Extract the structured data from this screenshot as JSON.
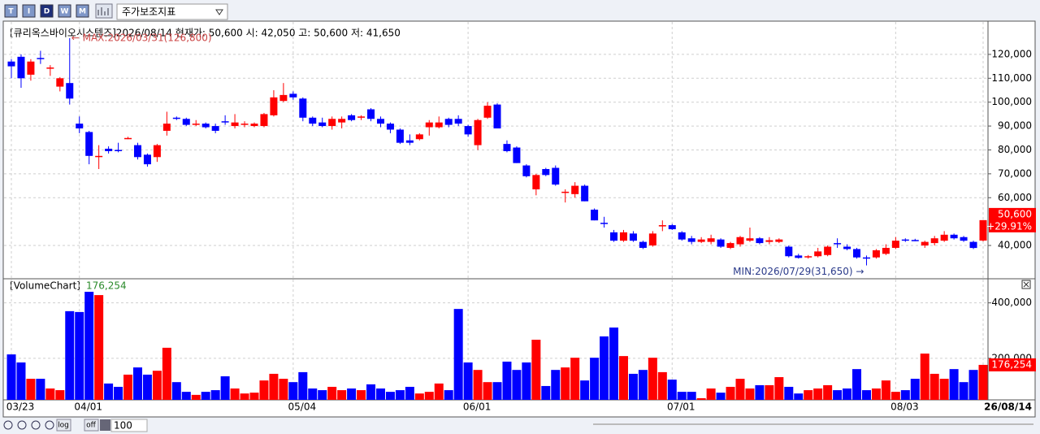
{
  "toolbar": {
    "buttons": [
      "T",
      "I",
      "D",
      "W",
      "M"
    ],
    "indicator_select": "주가보조지표"
  },
  "chart_data": [
    {
      "type": "candlestick",
      "header": "[큐리옥스바이오시스템즈]2026/08/14 현재가: 50,600 시: 42,050 고: 50,600 저: 41,650",
      "max_label": "← MAX:2026/03/31(126,800)",
      "min_label": "MIN:2026/07/29(31,650) →",
      "categories": [
        "03/23",
        null,
        null,
        null,
        null,
        null,
        null,
        "04/01",
        null,
        null,
        null,
        null,
        null,
        null,
        null,
        null,
        null,
        null,
        null,
        null,
        null,
        null,
        null,
        null,
        null,
        null,
        null,
        null,
        null,
        "05/04",
        null,
        null,
        null,
        null,
        null,
        null,
        null,
        null,
        null,
        null,
        null,
        null,
        null,
        null,
        null,
        null,
        null,
        "06/01",
        null,
        null,
        null,
        null,
        null,
        null,
        null,
        null,
        null,
        null,
        null,
        null,
        null,
        null,
        null,
        null,
        null,
        null,
        null,
        null,
        "07/01",
        null,
        null,
        null,
        null,
        null,
        null,
        null,
        null,
        null,
        null,
        null,
        null,
        null,
        null,
        null,
        null,
        null,
        null,
        null,
        null,
        null,
        null,
        "08/03",
        null,
        null,
        null,
        null,
        null,
        null,
        null,
        null,
        "26/08/14"
      ],
      "open": [
        117000,
        119000,
        111500,
        118500,
        114000,
        106500,
        108000,
        91000,
        87500,
        77000,
        80500,
        80000,
        84500,
        82000,
        78000,
        77000,
        88000,
        93500,
        93000,
        90500,
        91000,
        90000,
        92000,
        90000,
        90500,
        90000,
        90000,
        94500,
        100500,
        103500,
        101500,
        93500,
        91500,
        90000,
        91500,
        94500,
        93500,
        97000,
        93000,
        91000,
        88500,
        84000,
        84500,
        89500,
        89500,
        93000,
        93000,
        90000,
        82000,
        93500,
        99000,
        82500,
        81000,
        73500,
        63500,
        72000,
        72500,
        62000,
        61500,
        65000,
        55000,
        49500,
        45500,
        42000,
        45000,
        41500,
        40000,
        48000,
        48500,
        45500,
        43000,
        41500,
        41500,
        42500,
        39000,
        40500,
        42000,
        43000,
        41500,
        41500,
        39500,
        35800,
        35000,
        35500,
        36000,
        41000,
        39500,
        38500,
        35000,
        35000,
        36500,
        39000,
        42500,
        42300,
        40000,
        41000,
        42000,
        44500,
        43500,
        41500,
        42050
      ],
      "high": [
        118000,
        120000,
        118000,
        121500,
        115500,
        110500,
        126800,
        94000,
        88000,
        82000,
        81500,
        83000,
        85500,
        83000,
        78500,
        82500,
        96000,
        94000,
        93500,
        92500,
        91500,
        91000,
        94500,
        95000,
        92000,
        91500,
        95500,
        105000,
        108000,
        104500,
        102000,
        94000,
        93500,
        94000,
        94000,
        95000,
        94500,
        97500,
        94000,
        91500,
        89000,
        86500,
        87000,
        92500,
        94000,
        93500,
        94500,
        90500,
        93000,
        100000,
        99500,
        84000,
        81500,
        74000,
        70000,
        72500,
        73500,
        63500,
        66500,
        65500,
        55500,
        52000,
        46500,
        46500,
        46000,
        42000,
        46000,
        50500,
        49000,
        46000,
        44000,
        43500,
        44500,
        43000,
        41500,
        44000,
        47500,
        43500,
        43500,
        43000,
        40000,
        36500,
        36000,
        39000,
        40000,
        43000,
        40500,
        39000,
        35800,
        38500,
        40500,
        43500,
        43000,
        42800,
        42000,
        44000,
        46000,
        45000,
        44000,
        42000,
        50600
      ],
      "low": [
        110000,
        106000,
        109000,
        116000,
        111000,
        104500,
        99000,
        87000,
        74000,
        72000,
        78500,
        79000,
        84500,
        76000,
        73000,
        75000,
        86000,
        92500,
        90000,
        90000,
        89000,
        87000,
        90500,
        89000,
        89500,
        89500,
        89500,
        94000,
        100000,
        101000,
        92000,
        90000,
        89500,
        88500,
        89000,
        92000,
        92500,
        92000,
        89500,
        87000,
        82500,
        82000,
        84000,
        86000,
        89000,
        89500,
        90000,
        85500,
        80000,
        93000,
        89000,
        79000,
        74500,
        68500,
        61000,
        69000,
        65000,
        58000,
        60000,
        58500,
        50500,
        47500,
        41500,
        41500,
        41500,
        38500,
        39500,
        46000,
        46500,
        42000,
        40500,
        41000,
        40500,
        39000,
        38500,
        39500,
        41500,
        40500,
        40500,
        41000,
        35000,
        34500,
        34500,
        35000,
        35500,
        39000,
        38000,
        34500,
        31650,
        34500,
        36000,
        38500,
        41500,
        41800,
        39000,
        40000,
        41500,
        42500,
        41500,
        38500,
        41650
      ],
      "close": [
        115000,
        110000,
        117000,
        118000,
        114500,
        110000,
        101500,
        89000,
        77500,
        77500,
        79500,
        79500,
        85000,
        77000,
        74000,
        82000,
        91000,
        93000,
        90500,
        91000,
        89500,
        88000,
        91500,
        91500,
        91000,
        91000,
        95000,
        102000,
        103000,
        102000,
        93500,
        91000,
        90000,
        93000,
        93000,
        92500,
        94000,
        93000,
        91000,
        88500,
        83000,
        83000,
        86500,
        91500,
        91500,
        90500,
        91000,
        86500,
        92500,
        98500,
        89000,
        79500,
        74500,
        69000,
        69500,
        69500,
        65500,
        62500,
        65000,
        58500,
        50500,
        49000,
        42000,
        45500,
        42000,
        39000,
        45000,
        48500,
        46800,
        42500,
        41500,
        42500,
        43000,
        39500,
        41000,
        43500,
        43000,
        41000,
        42200,
        42500,
        35500,
        34800,
        35500,
        37500,
        39500,
        40800,
        38500,
        35000,
        34600,
        38000,
        39000,
        42000,
        42000,
        42000,
        41500,
        43000,
        44500,
        43000,
        42000,
        38950,
        50600
      ],
      "up_color": "#ff0000",
      "down_color": "#0000ff",
      "last_price": {
        "value": 50600,
        "label": "50,600"
      },
      "change": {
        "value": 29.91,
        "label": "+29.91%"
      },
      "ylim": [
        26400,
        132900
      ],
      "yticks": [
        {
          "value": 40000,
          "label": "40,000"
        },
        {
          "value": 60000,
          "label": "60,000"
        },
        {
          "value": 70000,
          "label": "70,000"
        },
        {
          "value": 80000,
          "label": "80,000"
        },
        {
          "value": 90000,
          "label": "90,000"
        },
        {
          "value": 100000,
          "label": "100,000"
        },
        {
          "value": 110000,
          "label": "110,000"
        },
        {
          "value": 120000,
          "label": "120,000"
        }
      ],
      "grid": true
    },
    {
      "type": "bar",
      "title": "[VolumeChart]",
      "last_value": {
        "value": 176254,
        "label": "176,254"
      },
      "values": [
        214000,
        185000,
        126000,
        126000,
        91000,
        85000,
        370000,
        367000,
        440000,
        428000,
        109000,
        97000,
        141000,
        167000,
        141000,
        155000,
        238000,
        114000,
        79000,
        68000,
        79000,
        85000,
        135000,
        91000,
        73000,
        76000,
        120000,
        144000,
        126000,
        114000,
        150000,
        91000,
        85000,
        97000,
        85000,
        91000,
        85000,
        106000,
        91000,
        79000,
        85000,
        97000,
        73000,
        79000,
        109000,
        85000,
        378000,
        185000,
        158000,
        114000,
        114000,
        188000,
        158000,
        185000,
        267000,
        100000,
        158000,
        167000,
        202000,
        120000,
        202000,
        279000,
        311000,
        208000,
        144000,
        158000,
        202000,
        150000,
        123000,
        79000,
        79000,
        56000,
        91000,
        76000,
        97000,
        126000,
        91000,
        103000,
        103000,
        132000,
        97000,
        73000,
        85000,
        91000,
        103000,
        85000,
        91000,
        161000,
        85000,
        91000,
        120000,
        79000,
        85000,
        126000,
        217000,
        144000,
        126000,
        161000,
        114000,
        158000,
        176254
      ],
      "ylim": [
        50000,
        440000
      ],
      "yticks": [
        {
          "value": 200000,
          "label": "200,000"
        },
        {
          "value": 400000,
          "label": "400,000"
        }
      ],
      "grid": true
    }
  ],
  "footer": {
    "buttons": [
      "log",
      "off"
    ],
    "count": "100"
  }
}
